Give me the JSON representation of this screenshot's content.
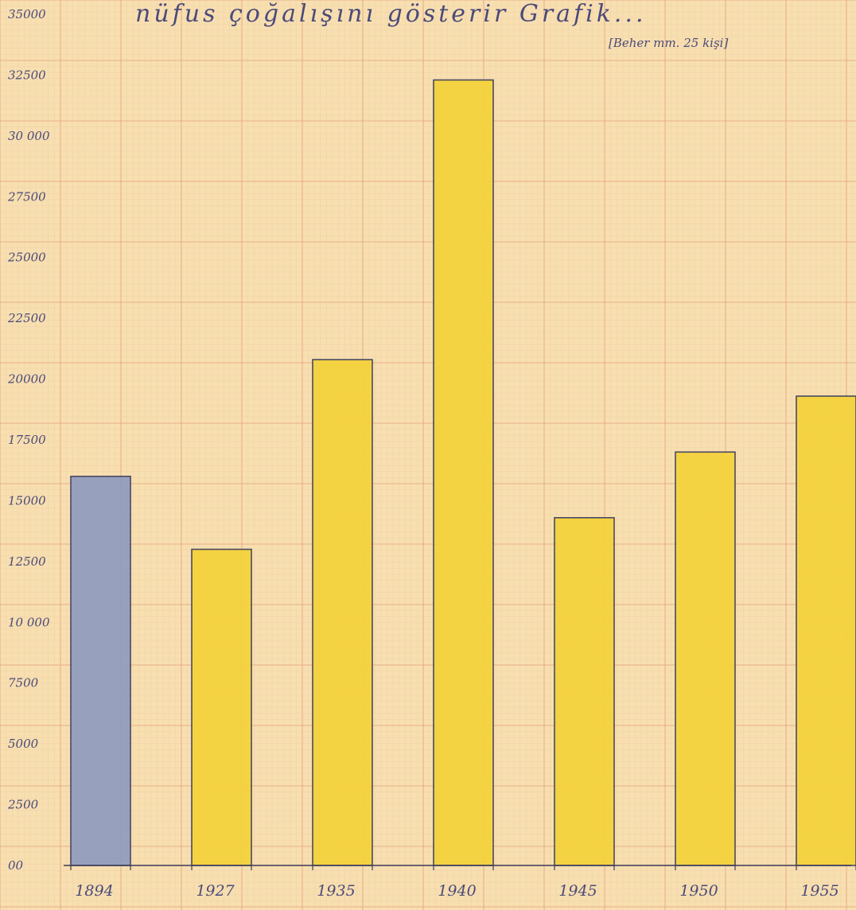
{
  "chart_data": {
    "type": "bar",
    "title": "nüfus çoğalışını gösterir Grafik...",
    "subtitle": "[Beher mm. 25 kişi]",
    "xlabel": "",
    "ylabel": "",
    "categories": [
      "1894",
      "1927",
      "1935",
      "1940",
      "1945",
      "1950",
      "1955"
    ],
    "values": [
      16000,
      13000,
      20800,
      32300,
      14300,
      17000,
      19300
    ],
    "ylim": [
      0,
      35000
    ],
    "yticks": [
      0,
      2500,
      5000,
      7500,
      10000,
      12500,
      15000,
      17500,
      20000,
      22500,
      25000,
      27500,
      30000,
      32500,
      35000
    ],
    "ytick_labels": [
      "00",
      "2500",
      "5000",
      "7500",
      "10 000",
      "12500",
      "15000",
      "17500",
      "20000",
      "22500",
      "25000",
      "27500",
      "30 000",
      "32500",
      "35000"
    ],
    "grid": true,
    "legend": "none",
    "colors": {
      "paper": "#f7dfb0",
      "grid_minor": "#f0c8a4",
      "grid_major": "#e8a47e",
      "bar_first": "#8f9cbf",
      "bar_other": "#f4d23a",
      "outline": "#3c3c5a",
      "ink": "#4a4a7a"
    }
  }
}
